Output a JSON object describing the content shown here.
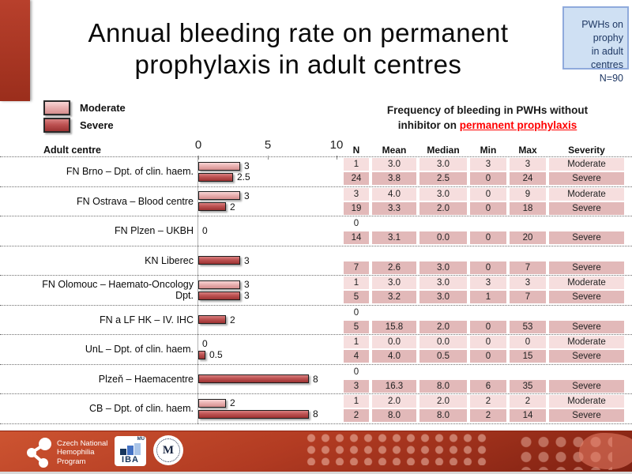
{
  "title": {
    "line1": "Annual bleeding rate on permanent",
    "line2": "prophylaxis in adult centres"
  },
  "info_box": {
    "line1": "PWHs on prophy",
    "line2": "in adult centres",
    "line3": "N=90"
  },
  "legend": {
    "moderate": "Moderate",
    "severe": "Severe"
  },
  "note": {
    "line1": "Frequency of bleeding in PWHs without",
    "line2_prefix": "inhibitor on ",
    "line2_highlight": "permanent prophylaxis"
  },
  "columns": {
    "centre": "Adult centre",
    "headers": [
      "N",
      "Mean",
      "Median",
      "Min",
      "Max",
      "Severity"
    ]
  },
  "axis": {
    "ticks": [
      "0",
      "5",
      "10"
    ]
  },
  "chart_data": {
    "type": "bar",
    "orientation": "horizontal",
    "title": "Annual bleeding rate on permanent prophylaxis in adult centres",
    "xlim": [
      0,
      10
    ],
    "tick_values": [
      0,
      5,
      10
    ],
    "note": "bar lengths equal the median annual bleeding rate per severity group",
    "categories": [
      "FN Brno – Dpt. of clin. haem.",
      "FN Ostrava – Blood centre",
      "FN Plzen – UKBH",
      "KN Liberec",
      "FN Olomouc – Haemato-Oncology Dpt.",
      "FN a LF HK – IV. IHC",
      "UnL – Dpt. of clin. haem.",
      "Plzeň – Haemacentre",
      "CB – Dpt. of clin. haem."
    ],
    "series": [
      {
        "name": "Moderate",
        "values": [
          3,
          3,
          null,
          null,
          3,
          null,
          0,
          null,
          2
        ]
      },
      {
        "name": "Severe",
        "values": [
          2.5,
          2,
          0,
          3,
          3,
          2,
          0.5,
          8,
          8
        ]
      }
    ]
  },
  "groups": [
    {
      "centre": "FN Brno – Dpt. of clin. haem.",
      "bars": [
        {
          "type": "moderate",
          "value": 3,
          "label": "3"
        },
        {
          "type": "severe",
          "value": 2.5,
          "label": "2.5"
        }
      ],
      "rows": [
        {
          "type": "moderate",
          "n": "1",
          "mean": "3.0",
          "median": "3.0",
          "min": "3",
          "max": "3",
          "severity": "Moderate"
        },
        {
          "type": "severe",
          "n": "24",
          "mean": "3.8",
          "median": "2.5",
          "min": "0",
          "max": "24",
          "severity": "Severe"
        }
      ]
    },
    {
      "centre": "FN Ostrava – Blood centre",
      "bars": [
        {
          "type": "moderate",
          "value": 3,
          "label": "3"
        },
        {
          "type": "severe",
          "value": 2,
          "label": "2"
        }
      ],
      "rows": [
        {
          "type": "moderate",
          "n": "3",
          "mean": "4.0",
          "median": "3.0",
          "min": "0",
          "max": "9",
          "severity": "Moderate"
        },
        {
          "type": "severe",
          "n": "19",
          "mean": "3.3",
          "median": "2.0",
          "min": "0",
          "max": "18",
          "severity": "Severe"
        }
      ]
    },
    {
      "centre": "FN Plzen – UKBH",
      "bars": [
        {
          "type": "severe",
          "value": 0,
          "label": "0"
        }
      ],
      "rows": [
        {
          "type": "blank",
          "n": "0",
          "mean": "",
          "median": "",
          "min": "",
          "max": "",
          "severity": ""
        },
        {
          "type": "severe",
          "n": "14",
          "mean": "3.1",
          "median": "0.0",
          "min": "0",
          "max": "20",
          "severity": "Severe"
        }
      ]
    },
    {
      "centre": "KN Liberec",
      "bars": [
        {
          "type": "severe",
          "value": 3,
          "label": "3"
        }
      ],
      "rows": [
        {
          "type": "blank",
          "n": "",
          "mean": "",
          "median": "",
          "min": "",
          "max": "",
          "severity": ""
        },
        {
          "type": "severe",
          "n": "7",
          "mean": "2.6",
          "median": "3.0",
          "min": "0",
          "max": "7",
          "severity": "Severe"
        }
      ]
    },
    {
      "centre": "FN Olomouc – Haemato-Oncology Dpt.",
      "bars": [
        {
          "type": "moderate",
          "value": 3,
          "label": "3"
        },
        {
          "type": "severe",
          "value": 3,
          "label": "3"
        }
      ],
      "rows": [
        {
          "type": "moderate",
          "n": "1",
          "mean": "3.0",
          "median": "3.0",
          "min": "3",
          "max": "3",
          "severity": "Moderate"
        },
        {
          "type": "severe",
          "n": "5",
          "mean": "3.2",
          "median": "3.0",
          "min": "1",
          "max": "7",
          "severity": "Severe"
        }
      ]
    },
    {
      "centre": "FN a LF HK – IV. IHC",
      "bars": [
        {
          "type": "severe",
          "value": 2,
          "label": "2"
        }
      ],
      "rows": [
        {
          "type": "blank",
          "n": "0",
          "mean": "",
          "median": "",
          "min": "",
          "max": "",
          "severity": ""
        },
        {
          "type": "severe",
          "n": "5",
          "mean": "15.8",
          "median": "2.0",
          "min": "0",
          "max": "53",
          "severity": "Severe"
        }
      ]
    },
    {
      "centre": "UnL – Dpt. of clin. haem.",
      "bars": [
        {
          "type": "moderate",
          "value": 0,
          "label": "0"
        },
        {
          "type": "severe",
          "value": 0.5,
          "label": "0.5"
        }
      ],
      "rows": [
        {
          "type": "moderate",
          "n": "1",
          "mean": "0.0",
          "median": "0.0",
          "min": "0",
          "max": "0",
          "severity": "Moderate"
        },
        {
          "type": "severe",
          "n": "4",
          "mean": "4.0",
          "median": "0.5",
          "min": "0",
          "max": "15",
          "severity": "Severe"
        }
      ]
    },
    {
      "centre": "Plzeň – Haemacentre",
      "bars": [
        {
          "type": "severe",
          "value": 8,
          "label": "8"
        }
      ],
      "rows": [
        {
          "type": "blank",
          "n": "0",
          "mean": "",
          "median": "",
          "min": "",
          "max": "",
          "severity": ""
        },
        {
          "type": "severe",
          "n": "3",
          "mean": "16.3",
          "median": "8.0",
          "min": "6",
          "max": "35",
          "severity": "Severe"
        }
      ]
    },
    {
      "centre": "CB – Dpt. of clin. haem.",
      "bars": [
        {
          "type": "moderate",
          "value": 2,
          "label": "2"
        },
        {
          "type": "severe",
          "value": 8,
          "label": "8"
        }
      ],
      "rows": [
        {
          "type": "moderate",
          "n": "1",
          "mean": "2.0",
          "median": "2.0",
          "min": "2",
          "max": "2",
          "severity": "Moderate"
        },
        {
          "type": "severe",
          "n": "2",
          "mean": "8.0",
          "median": "8.0",
          "min": "2",
          "max": "14",
          "severity": "Severe"
        }
      ]
    }
  ],
  "footer": {
    "program_line1": "Czech National",
    "program_line2": "Hemophilia",
    "program_line3": "Program",
    "iba_label": "IBA",
    "iba_mu": "MU",
    "seal_monogram": "M"
  },
  "colors": {
    "accent_red": "#b23b22",
    "moderate_fill": "#eab2b2",
    "severe_fill": "#bd5252",
    "moderate_row_bg": "#f6dede",
    "severe_row_bg": "#e2b9b9",
    "info_box_bg": "#cfe0f3",
    "info_box_border": "#8faadc",
    "info_box_text": "#1f3864",
    "highlight_red": "#ff0000"
  }
}
